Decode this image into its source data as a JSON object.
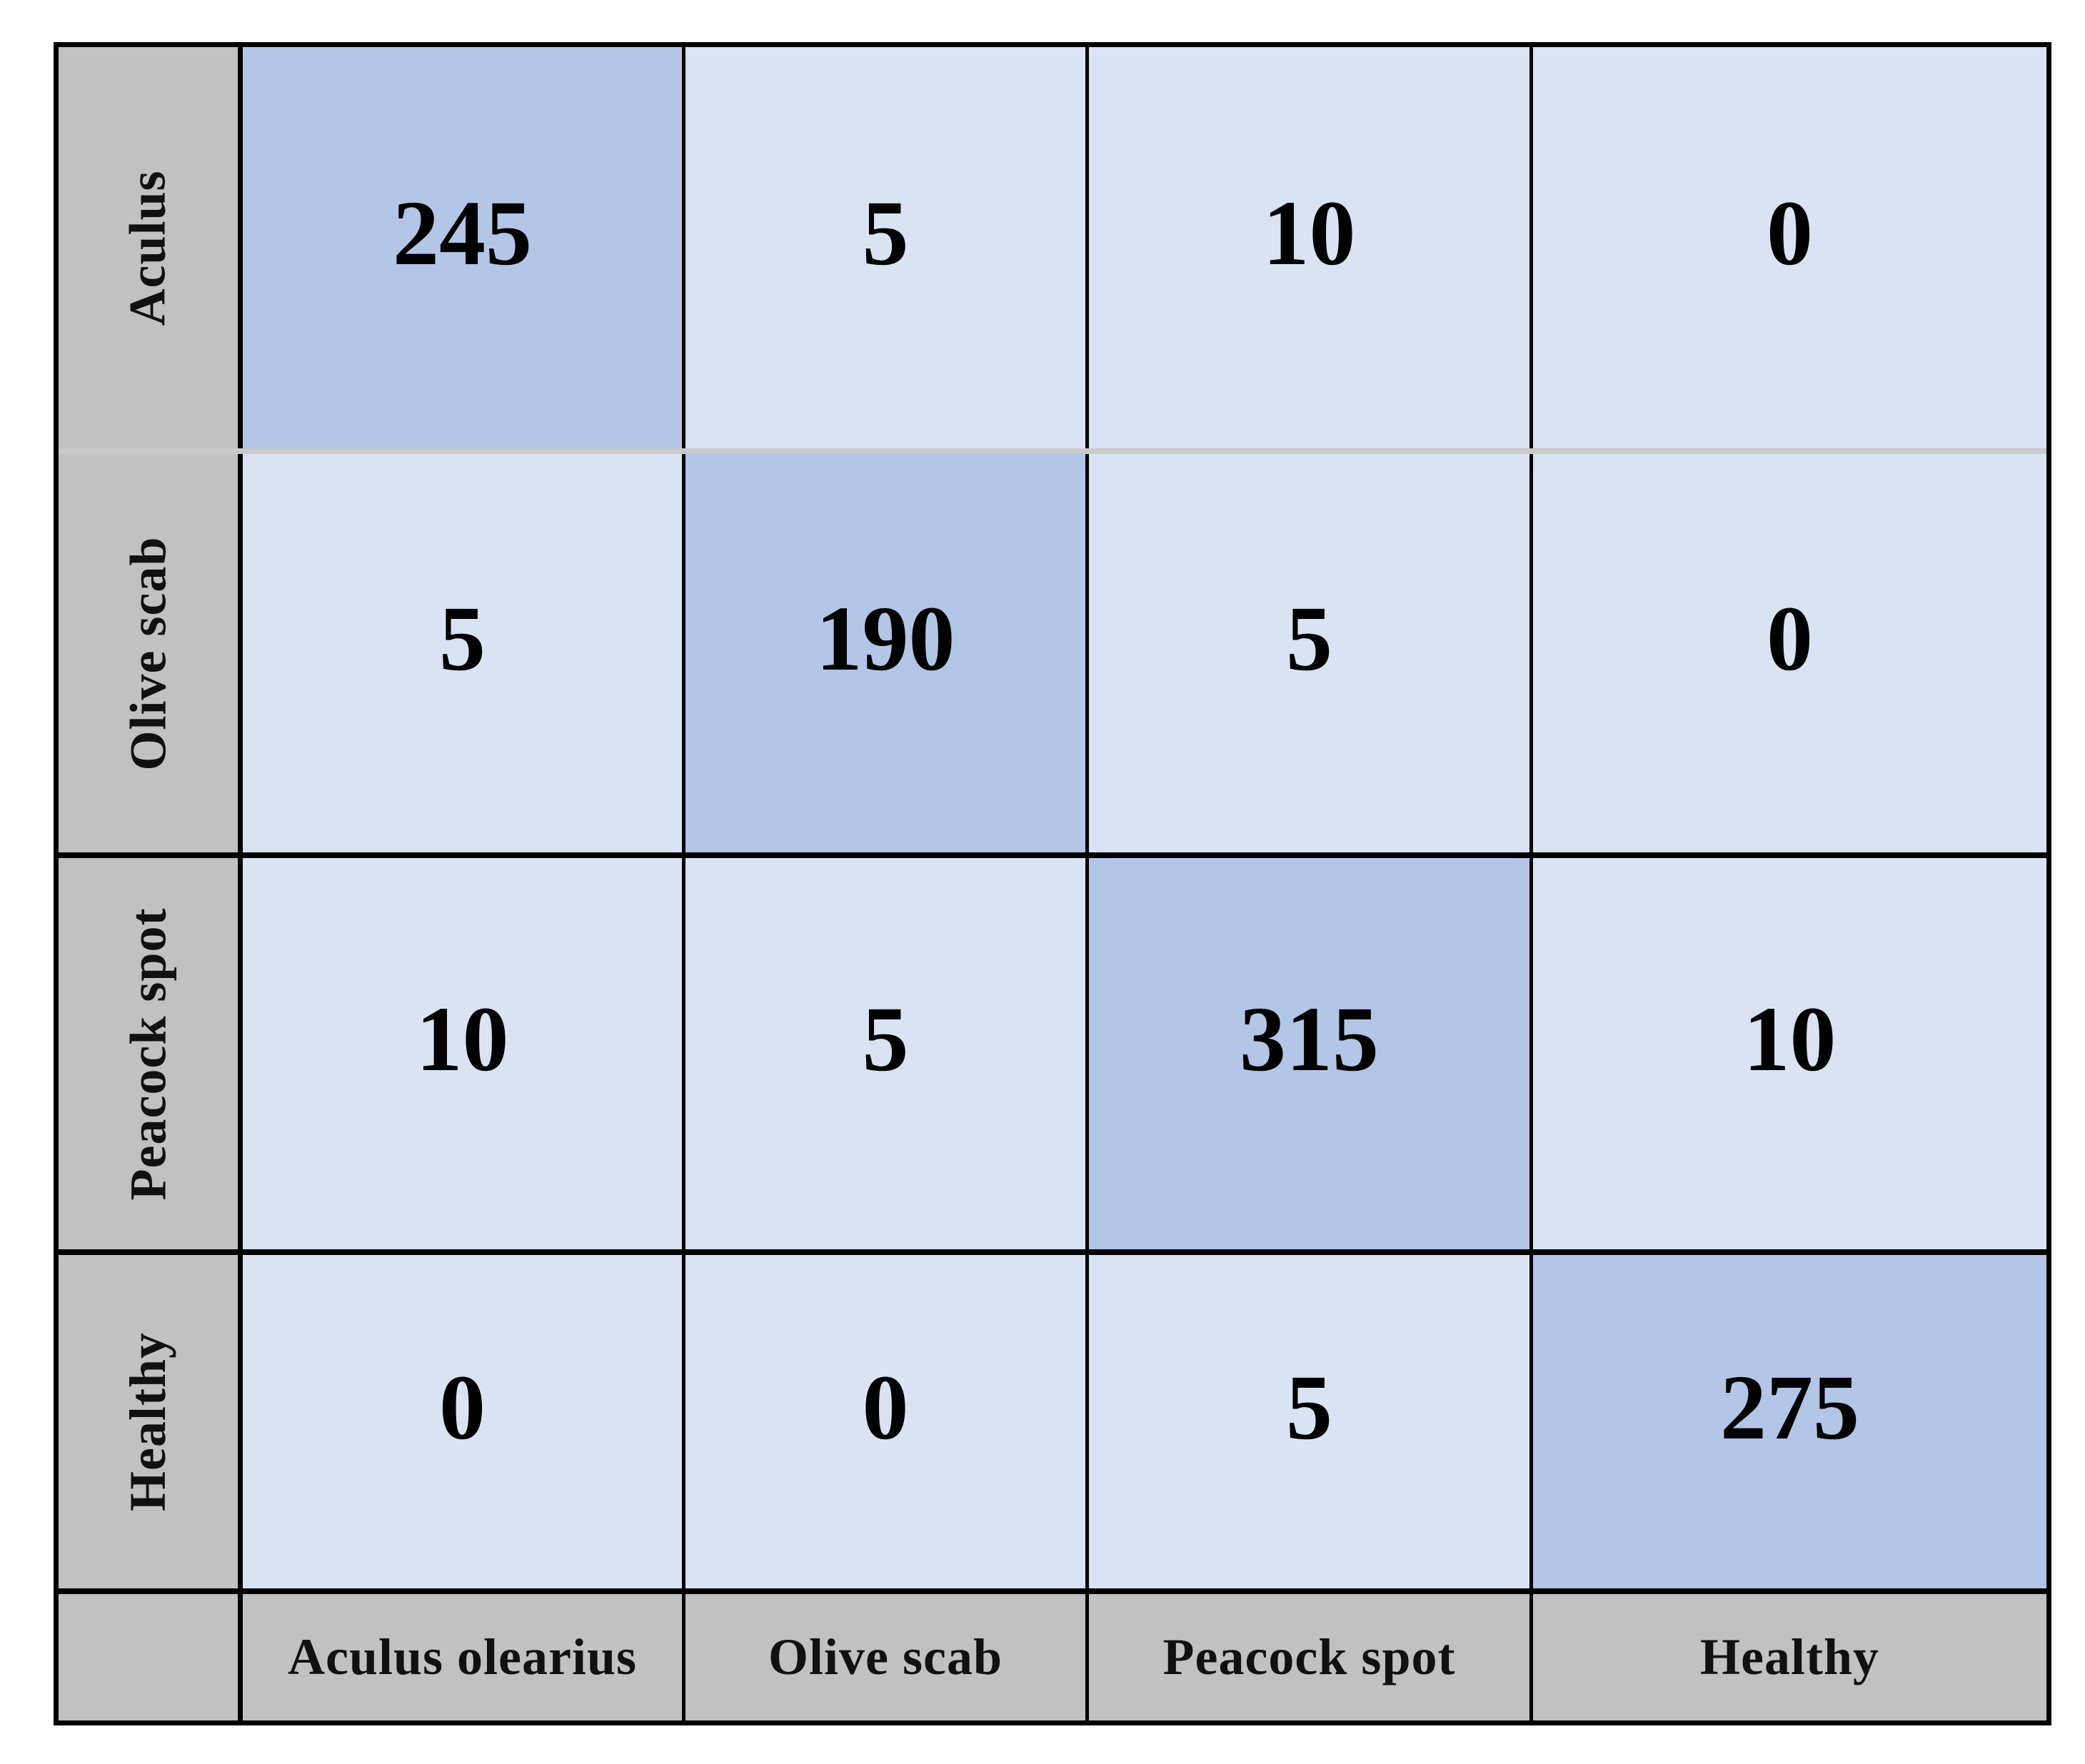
{
  "colors": {
    "diag": "#b4c6e7",
    "off": "#dae3f3",
    "head": "#c1c1c1",
    "divider": "#cacaca",
    "border": "#000000",
    "page_bg": "#ffffff"
  },
  "chart_data": {
    "type": "heatmap",
    "rows": [
      "Aculus",
      "Olive scab",
      "Peacock spot",
      "Healthy"
    ],
    "columns": [
      "Aculus olearius",
      "Olive scab",
      "Peacock spot",
      "Healthy"
    ],
    "values": [
      [
        245,
        5,
        10,
        0
      ],
      [
        5,
        190,
        5,
        0
      ],
      [
        10,
        5,
        315,
        10
      ],
      [
        0,
        0,
        5,
        275
      ]
    ],
    "legend_position": "none",
    "grid": true,
    "diagonal_highlight": true
  }
}
